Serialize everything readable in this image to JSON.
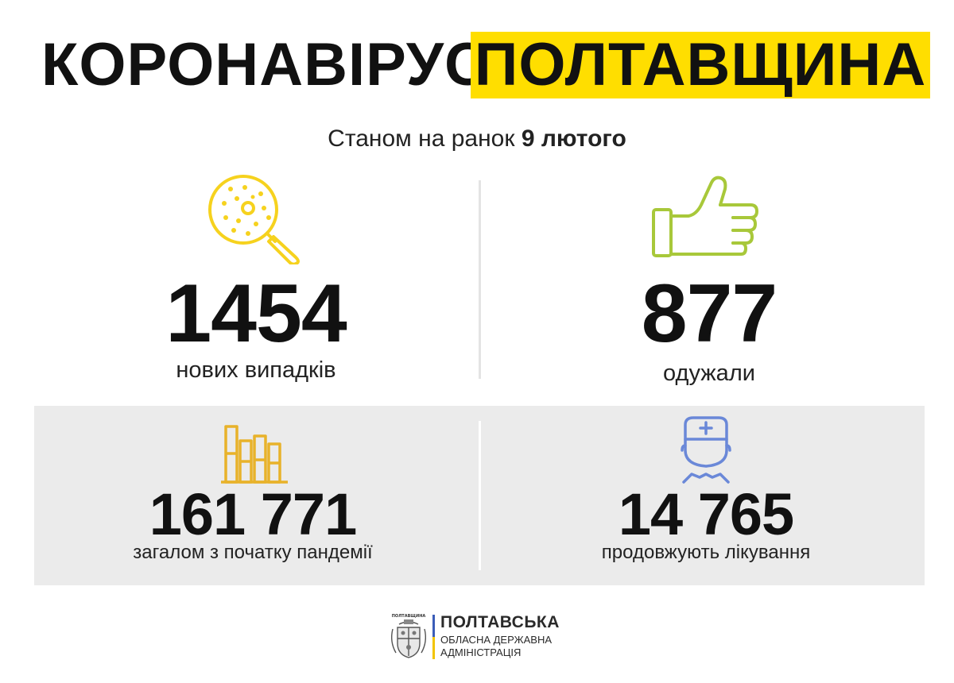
{
  "header": {
    "title_left": "КОРОНАВІРУС.",
    "title_right": "ПОЛТАВЩИНА",
    "accent_color": "#ffde00"
  },
  "subtitle": {
    "prefix": "Станом на ранок",
    "date": "9 лютого"
  },
  "stats": {
    "new_cases": {
      "value": "1454",
      "label": "нових випадків",
      "icon": "virus-magnifier-icon",
      "icon_color": "#f6d21e"
    },
    "recovered": {
      "value": "877",
      "label": "одужали",
      "icon": "thumbs-up-icon",
      "icon_color": "#a8c83a"
    },
    "total": {
      "value": "161 771",
      "label": "загалом з початку пандемії",
      "icon": "bar-chart-icon",
      "icon_color": "#e8b22a"
    },
    "in_treatment": {
      "value": "14 765",
      "label": "продовжують лікування",
      "icon": "doctor-icon",
      "icon_color": "#6a88d8"
    }
  },
  "footer": {
    "logo_name": "ПОЛТАВСЬКА",
    "logo_line1": "ОБЛАСНА ДЕРЖАВНА",
    "logo_line2": "АДМІНІСТРАЦІЯ",
    "emblem_caption": "ПОЛТАВЩИНА"
  }
}
